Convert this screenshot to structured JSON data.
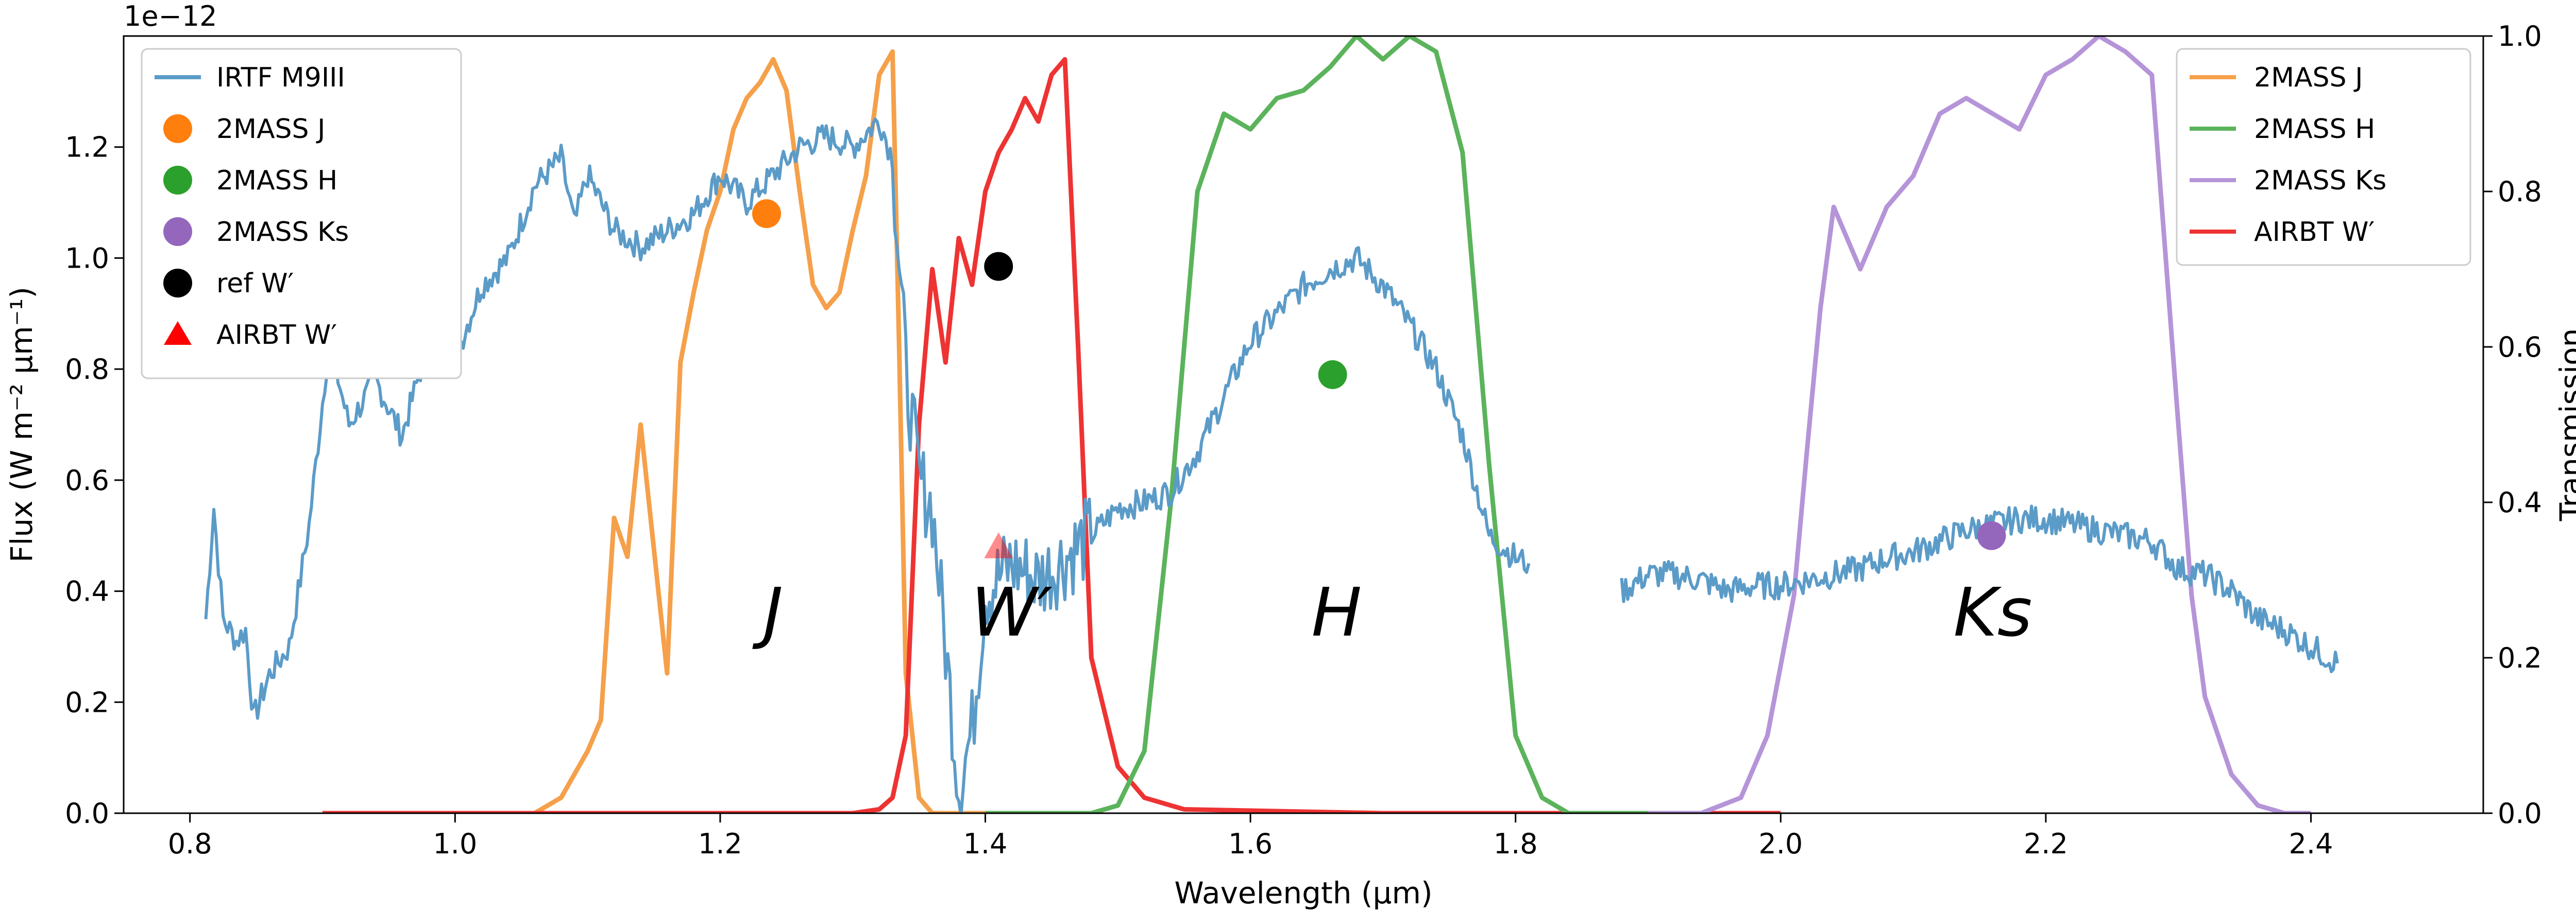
{
  "chart_data": {
    "type": "line",
    "offset_text": "1e−12",
    "xlabel": "Wavelength (μm)",
    "ylabel_left": "Flux (W m⁻² μm⁻¹)",
    "ylabel_right": "Transmission",
    "xlim": [
      0.75,
      2.53
    ],
    "ylim_left": [
      0,
      1.4
    ],
    "ylim_right": [
      0,
      1.0
    ],
    "x_ticks": [
      "0.8",
      "1.0",
      "1.2",
      "1.4",
      "1.6",
      "1.8",
      "2.0",
      "2.2",
      "2.4"
    ],
    "y_ticks_left": [
      "0.0",
      "0.2",
      "0.4",
      "0.6",
      "0.8",
      "1.0",
      "1.2"
    ],
    "y_ticks_right": [
      "0.0",
      "0.2",
      "0.4",
      "0.6",
      "0.8",
      "1.0"
    ],
    "band_labels": [
      {
        "text": "J",
        "x": 1.24,
        "y": 0.32
      },
      {
        "text": "W′",
        "x": 1.42,
        "y": 0.32
      },
      {
        "text": "H",
        "x": 1.665,
        "y": 0.32
      },
      {
        "text": "Ks",
        "x": 2.16,
        "y": 0.32
      }
    ],
    "legend_left": {
      "placement": "top-left",
      "entries": [
        {
          "label": "IRTF M9III",
          "marker": "line",
          "color": "#5b9bc8"
        },
        {
          "label": "2MASS J",
          "marker": "circle",
          "color": "#ff7f0e"
        },
        {
          "label": "2MASS H",
          "marker": "circle",
          "color": "#2ca02c"
        },
        {
          "label": "2MASS Ks",
          "marker": "circle",
          "color": "#9467bd"
        },
        {
          "label": "ref W′",
          "marker": "circle",
          "color": "#000000"
        },
        {
          "label": "AIRBT W′",
          "marker": "triangle",
          "color": "#ff0000"
        }
      ]
    },
    "legend_right": {
      "placement": "top-right",
      "entries": [
        {
          "label": "2MASS J",
          "color": "#f5a04a"
        },
        {
          "label": "2MASS H",
          "color": "#5bb35b"
        },
        {
          "label": "2MASS Ks",
          "color": "#b594d8"
        },
        {
          "label": "AIRBT W′",
          "color": "#ee3333"
        }
      ]
    },
    "spectrum": {
      "name": "IRTF M9III",
      "color": "#5b9bc8",
      "axis": "left",
      "segments": [
        [
          [
            0.812,
            0.35
          ],
          [
            0.818,
            0.55
          ],
          [
            0.825,
            0.35
          ],
          [
            0.835,
            0.31
          ],
          [
            0.842,
            0.33
          ],
          [
            0.848,
            0.17
          ],
          [
            0.86,
            0.25
          ],
          [
            0.875,
            0.3
          ],
          [
            0.89,
            0.52
          ],
          [
            0.905,
            0.85
          ],
          [
            0.92,
            0.7
          ],
          [
            0.94,
            0.78
          ],
          [
            0.96,
            0.68
          ],
          [
            0.98,
            0.85
          ],
          [
            1.0,
            0.82
          ],
          [
            1.02,
            0.95
          ],
          [
            1.04,
            1.0
          ],
          [
            1.06,
            1.13
          ],
          [
            1.08,
            1.18
          ],
          [
            1.09,
            1.06
          ],
          [
            1.1,
            1.15
          ],
          [
            1.12,
            1.05
          ],
          [
            1.14,
            1.02
          ],
          [
            1.16,
            1.05
          ],
          [
            1.18,
            1.08
          ],
          [
            1.2,
            1.15
          ],
          [
            1.22,
            1.1
          ],
          [
            1.24,
            1.15
          ],
          [
            1.26,
            1.2
          ],
          [
            1.28,
            1.22
          ],
          [
            1.3,
            1.2
          ],
          [
            1.32,
            1.25
          ],
          [
            1.33,
            1.18
          ],
          [
            1.34,
            0.8
          ],
          [
            1.35,
            0.6
          ],
          [
            1.36,
            0.55
          ],
          [
            1.37,
            0.3
          ],
          [
            1.38,
            0.05
          ],
          [
            1.39,
            0.15
          ],
          [
            1.4,
            0.4
          ],
          [
            1.42,
            0.45
          ],
          [
            1.44,
            0.42
          ],
          [
            1.46,
            0.46
          ],
          [
            1.48,
            0.5
          ],
          [
            1.5,
            0.55
          ],
          [
            1.52,
            0.56
          ],
          [
            1.54,
            0.58
          ],
          [
            1.56,
            0.65
          ],
          [
            1.58,
            0.75
          ],
          [
            1.6,
            0.85
          ],
          [
            1.62,
            0.9
          ],
          [
            1.64,
            0.95
          ],
          [
            1.66,
            0.98
          ],
          [
            1.68,
            1.0
          ],
          [
            1.7,
            0.95
          ],
          [
            1.72,
            0.88
          ],
          [
            1.74,
            0.8
          ],
          [
            1.76,
            0.68
          ],
          [
            1.78,
            0.5
          ],
          [
            1.8,
            0.46
          ],
          [
            1.81,
            0.45
          ]
        ],
        [
          [
            1.88,
            0.4
          ],
          [
            1.9,
            0.43
          ],
          [
            1.92,
            0.43
          ],
          [
            1.94,
            0.42
          ],
          [
            1.96,
            0.4
          ],
          [
            1.98,
            0.41
          ],
          [
            2.0,
            0.41
          ],
          [
            2.02,
            0.42
          ],
          [
            2.04,
            0.43
          ],
          [
            2.06,
            0.44
          ],
          [
            2.08,
            0.46
          ],
          [
            2.1,
            0.47
          ],
          [
            2.12,
            0.49
          ],
          [
            2.14,
            0.51
          ],
          [
            2.16,
            0.52
          ],
          [
            2.18,
            0.53
          ],
          [
            2.2,
            0.53
          ],
          [
            2.22,
            0.52
          ],
          [
            2.24,
            0.51
          ],
          [
            2.26,
            0.5
          ],
          [
            2.28,
            0.49
          ],
          [
            2.3,
            0.44
          ],
          [
            2.32,
            0.43
          ],
          [
            2.34,
            0.4
          ],
          [
            2.36,
            0.35
          ],
          [
            2.38,
            0.33
          ],
          [
            2.4,
            0.3
          ],
          [
            2.42,
            0.27
          ]
        ]
      ]
    },
    "filters": [
      {
        "name": "2MASS J",
        "color": "#f5a04a",
        "axis": "right",
        "points": [
          [
            0.9,
            0.0
          ],
          [
            1.06,
            0.0
          ],
          [
            1.08,
            0.02
          ],
          [
            1.1,
            0.08
          ],
          [
            1.11,
            0.12
          ],
          [
            1.12,
            0.38
          ],
          [
            1.13,
            0.33
          ],
          [
            1.14,
            0.5
          ],
          [
            1.15,
            0.34
          ],
          [
            1.16,
            0.18
          ],
          [
            1.17,
            0.58
          ],
          [
            1.18,
            0.67
          ],
          [
            1.19,
            0.75
          ],
          [
            1.2,
            0.8
          ],
          [
            1.21,
            0.88
          ],
          [
            1.22,
            0.92
          ],
          [
            1.23,
            0.94
          ],
          [
            1.24,
            0.97
          ],
          [
            1.25,
            0.93
          ],
          [
            1.26,
            0.8
          ],
          [
            1.27,
            0.68
          ],
          [
            1.28,
            0.65
          ],
          [
            1.29,
            0.67
          ],
          [
            1.3,
            0.75
          ],
          [
            1.31,
            0.82
          ],
          [
            1.32,
            0.95
          ],
          [
            1.33,
            0.98
          ],
          [
            1.335,
            0.6
          ],
          [
            1.34,
            0.18
          ],
          [
            1.35,
            0.02
          ],
          [
            1.36,
            0.0
          ],
          [
            1.42,
            0.0
          ]
        ]
      },
      {
        "name": "AIRBT W′",
        "color": "#ee3333",
        "axis": "right",
        "points": [
          [
            0.9,
            0.0
          ],
          [
            1.3,
            0.0
          ],
          [
            1.32,
            0.005
          ],
          [
            1.33,
            0.02
          ],
          [
            1.34,
            0.1
          ],
          [
            1.35,
            0.5
          ],
          [
            1.36,
            0.7
          ],
          [
            1.37,
            0.58
          ],
          [
            1.38,
            0.74
          ],
          [
            1.39,
            0.68
          ],
          [
            1.4,
            0.8
          ],
          [
            1.41,
            0.85
          ],
          [
            1.42,
            0.88
          ],
          [
            1.43,
            0.92
          ],
          [
            1.44,
            0.89
          ],
          [
            1.45,
            0.95
          ],
          [
            1.46,
            0.97
          ],
          [
            1.47,
            0.6
          ],
          [
            1.48,
            0.2
          ],
          [
            1.5,
            0.06
          ],
          [
            1.52,
            0.02
          ],
          [
            1.55,
            0.005
          ],
          [
            1.7,
            0.0
          ],
          [
            2.0,
            0.0
          ]
        ]
      },
      {
        "name": "2MASS H",
        "color": "#5bb35b",
        "axis": "right",
        "points": [
          [
            1.4,
            0.0
          ],
          [
            1.48,
            0.0
          ],
          [
            1.5,
            0.01
          ],
          [
            1.52,
            0.08
          ],
          [
            1.54,
            0.4
          ],
          [
            1.56,
            0.8
          ],
          [
            1.58,
            0.9
          ],
          [
            1.6,
            0.88
          ],
          [
            1.62,
            0.92
          ],
          [
            1.64,
            0.93
          ],
          [
            1.66,
            0.96
          ],
          [
            1.68,
            1.0
          ],
          [
            1.7,
            0.97
          ],
          [
            1.72,
            1.0
          ],
          [
            1.74,
            0.98
          ],
          [
            1.76,
            0.85
          ],
          [
            1.78,
            0.45
          ],
          [
            1.8,
            0.1
          ],
          [
            1.82,
            0.02
          ],
          [
            1.84,
            0.0
          ],
          [
            1.9,
            0.0
          ]
        ]
      },
      {
        "name": "2MASS Ks",
        "color": "#b594d8",
        "axis": "right",
        "points": [
          [
            1.9,
            0.0
          ],
          [
            1.94,
            0.0
          ],
          [
            1.97,
            0.02
          ],
          [
            1.99,
            0.1
          ],
          [
            2.01,
            0.28
          ],
          [
            2.02,
            0.47
          ],
          [
            2.03,
            0.65
          ],
          [
            2.04,
            0.78
          ],
          [
            2.06,
            0.7
          ],
          [
            2.08,
            0.78
          ],
          [
            2.1,
            0.82
          ],
          [
            2.12,
            0.9
          ],
          [
            2.14,
            0.92
          ],
          [
            2.16,
            0.9
          ],
          [
            2.18,
            0.88
          ],
          [
            2.2,
            0.95
          ],
          [
            2.22,
            0.97
          ],
          [
            2.24,
            1.0
          ],
          [
            2.26,
            0.98
          ],
          [
            2.28,
            0.95
          ],
          [
            2.3,
            0.5
          ],
          [
            2.31,
            0.28
          ],
          [
            2.32,
            0.15
          ],
          [
            2.34,
            0.05
          ],
          [
            2.36,
            0.01
          ],
          [
            2.38,
            0.0
          ],
          [
            2.4,
            0.0
          ]
        ]
      }
    ],
    "markers": [
      {
        "name": "2MASS J",
        "shape": "circle",
        "color": "#ff7f0e",
        "x": 1.235,
        "y": 1.08
      },
      {
        "name": "2MASS H",
        "shape": "circle",
        "color": "#2ca02c",
        "x": 1.662,
        "y": 0.79
      },
      {
        "name": "2MASS Ks",
        "shape": "circle",
        "color": "#9467bd",
        "x": 2.159,
        "y": 0.5
      },
      {
        "name": "ref W′",
        "shape": "circle",
        "color": "#000000",
        "x": 1.41,
        "y": 0.985
      },
      {
        "name": "AIRBT W′",
        "shape": "triangle",
        "color": "#ff0000",
        "x": 1.41,
        "y": 0.48
      }
    ]
  }
}
